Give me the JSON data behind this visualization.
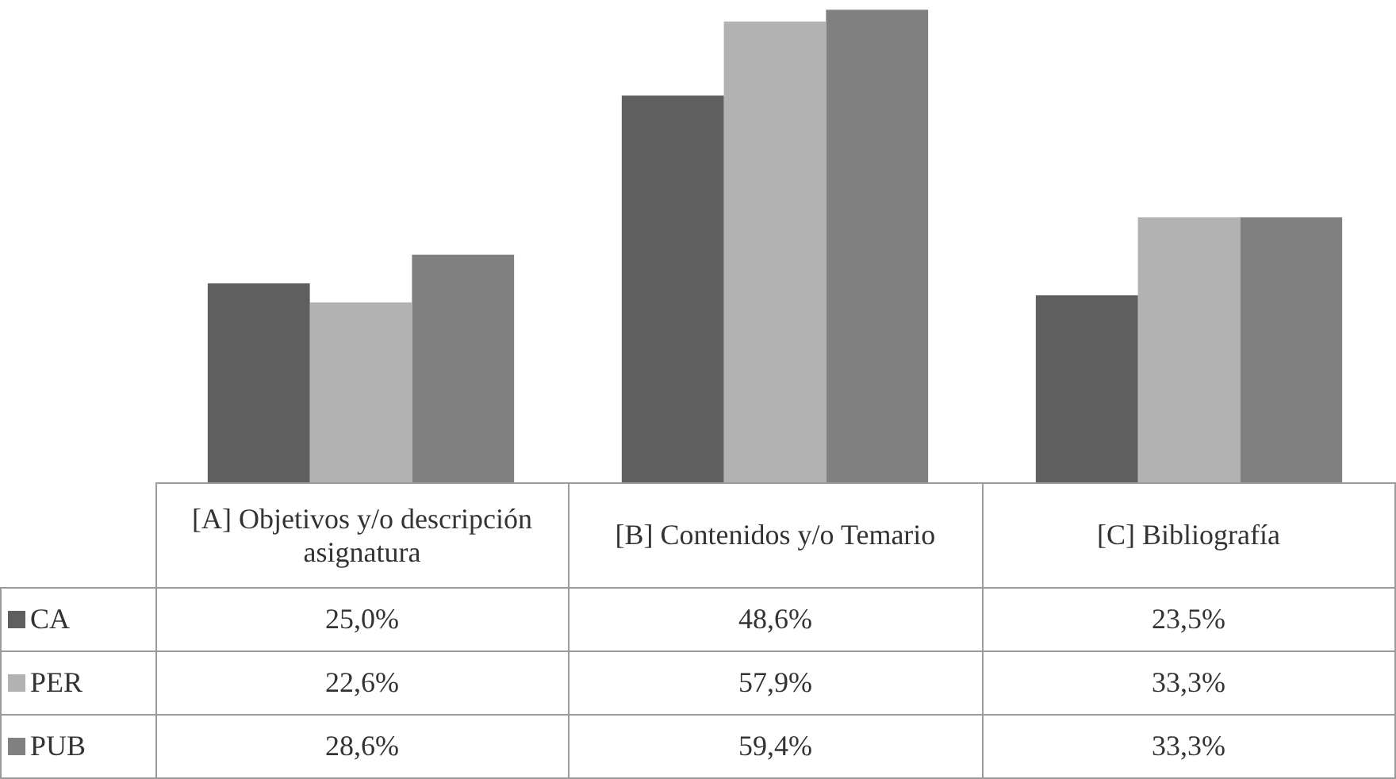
{
  "chart_data": {
    "type": "bar",
    "categories": [
      "[A] Objetivos y/o descripción asignatura",
      "[B] Contenidos y/o Temario",
      "[C] Bibliografía"
    ],
    "series": [
      {
        "name": "CA",
        "color": "#5f5f5f",
        "values": [
          25.0,
          48.6,
          23.5
        ],
        "value_labels": [
          "25,0%",
          "48,6%",
          "23,5%"
        ]
      },
      {
        "name": "PER",
        "color": "#b2b2b2",
        "values": [
          22.6,
          57.9,
          33.3
        ],
        "value_labels": [
          "22,6%",
          "57,9%",
          "33,3%"
        ]
      },
      {
        "name": "PUB",
        "color": "#808080",
        "values": [
          28.6,
          59.4,
          33.3
        ],
        "value_labels": [
          "28,6%",
          "59,4%",
          "33,3%"
        ]
      }
    ],
    "legend": "bottom"
  }
}
